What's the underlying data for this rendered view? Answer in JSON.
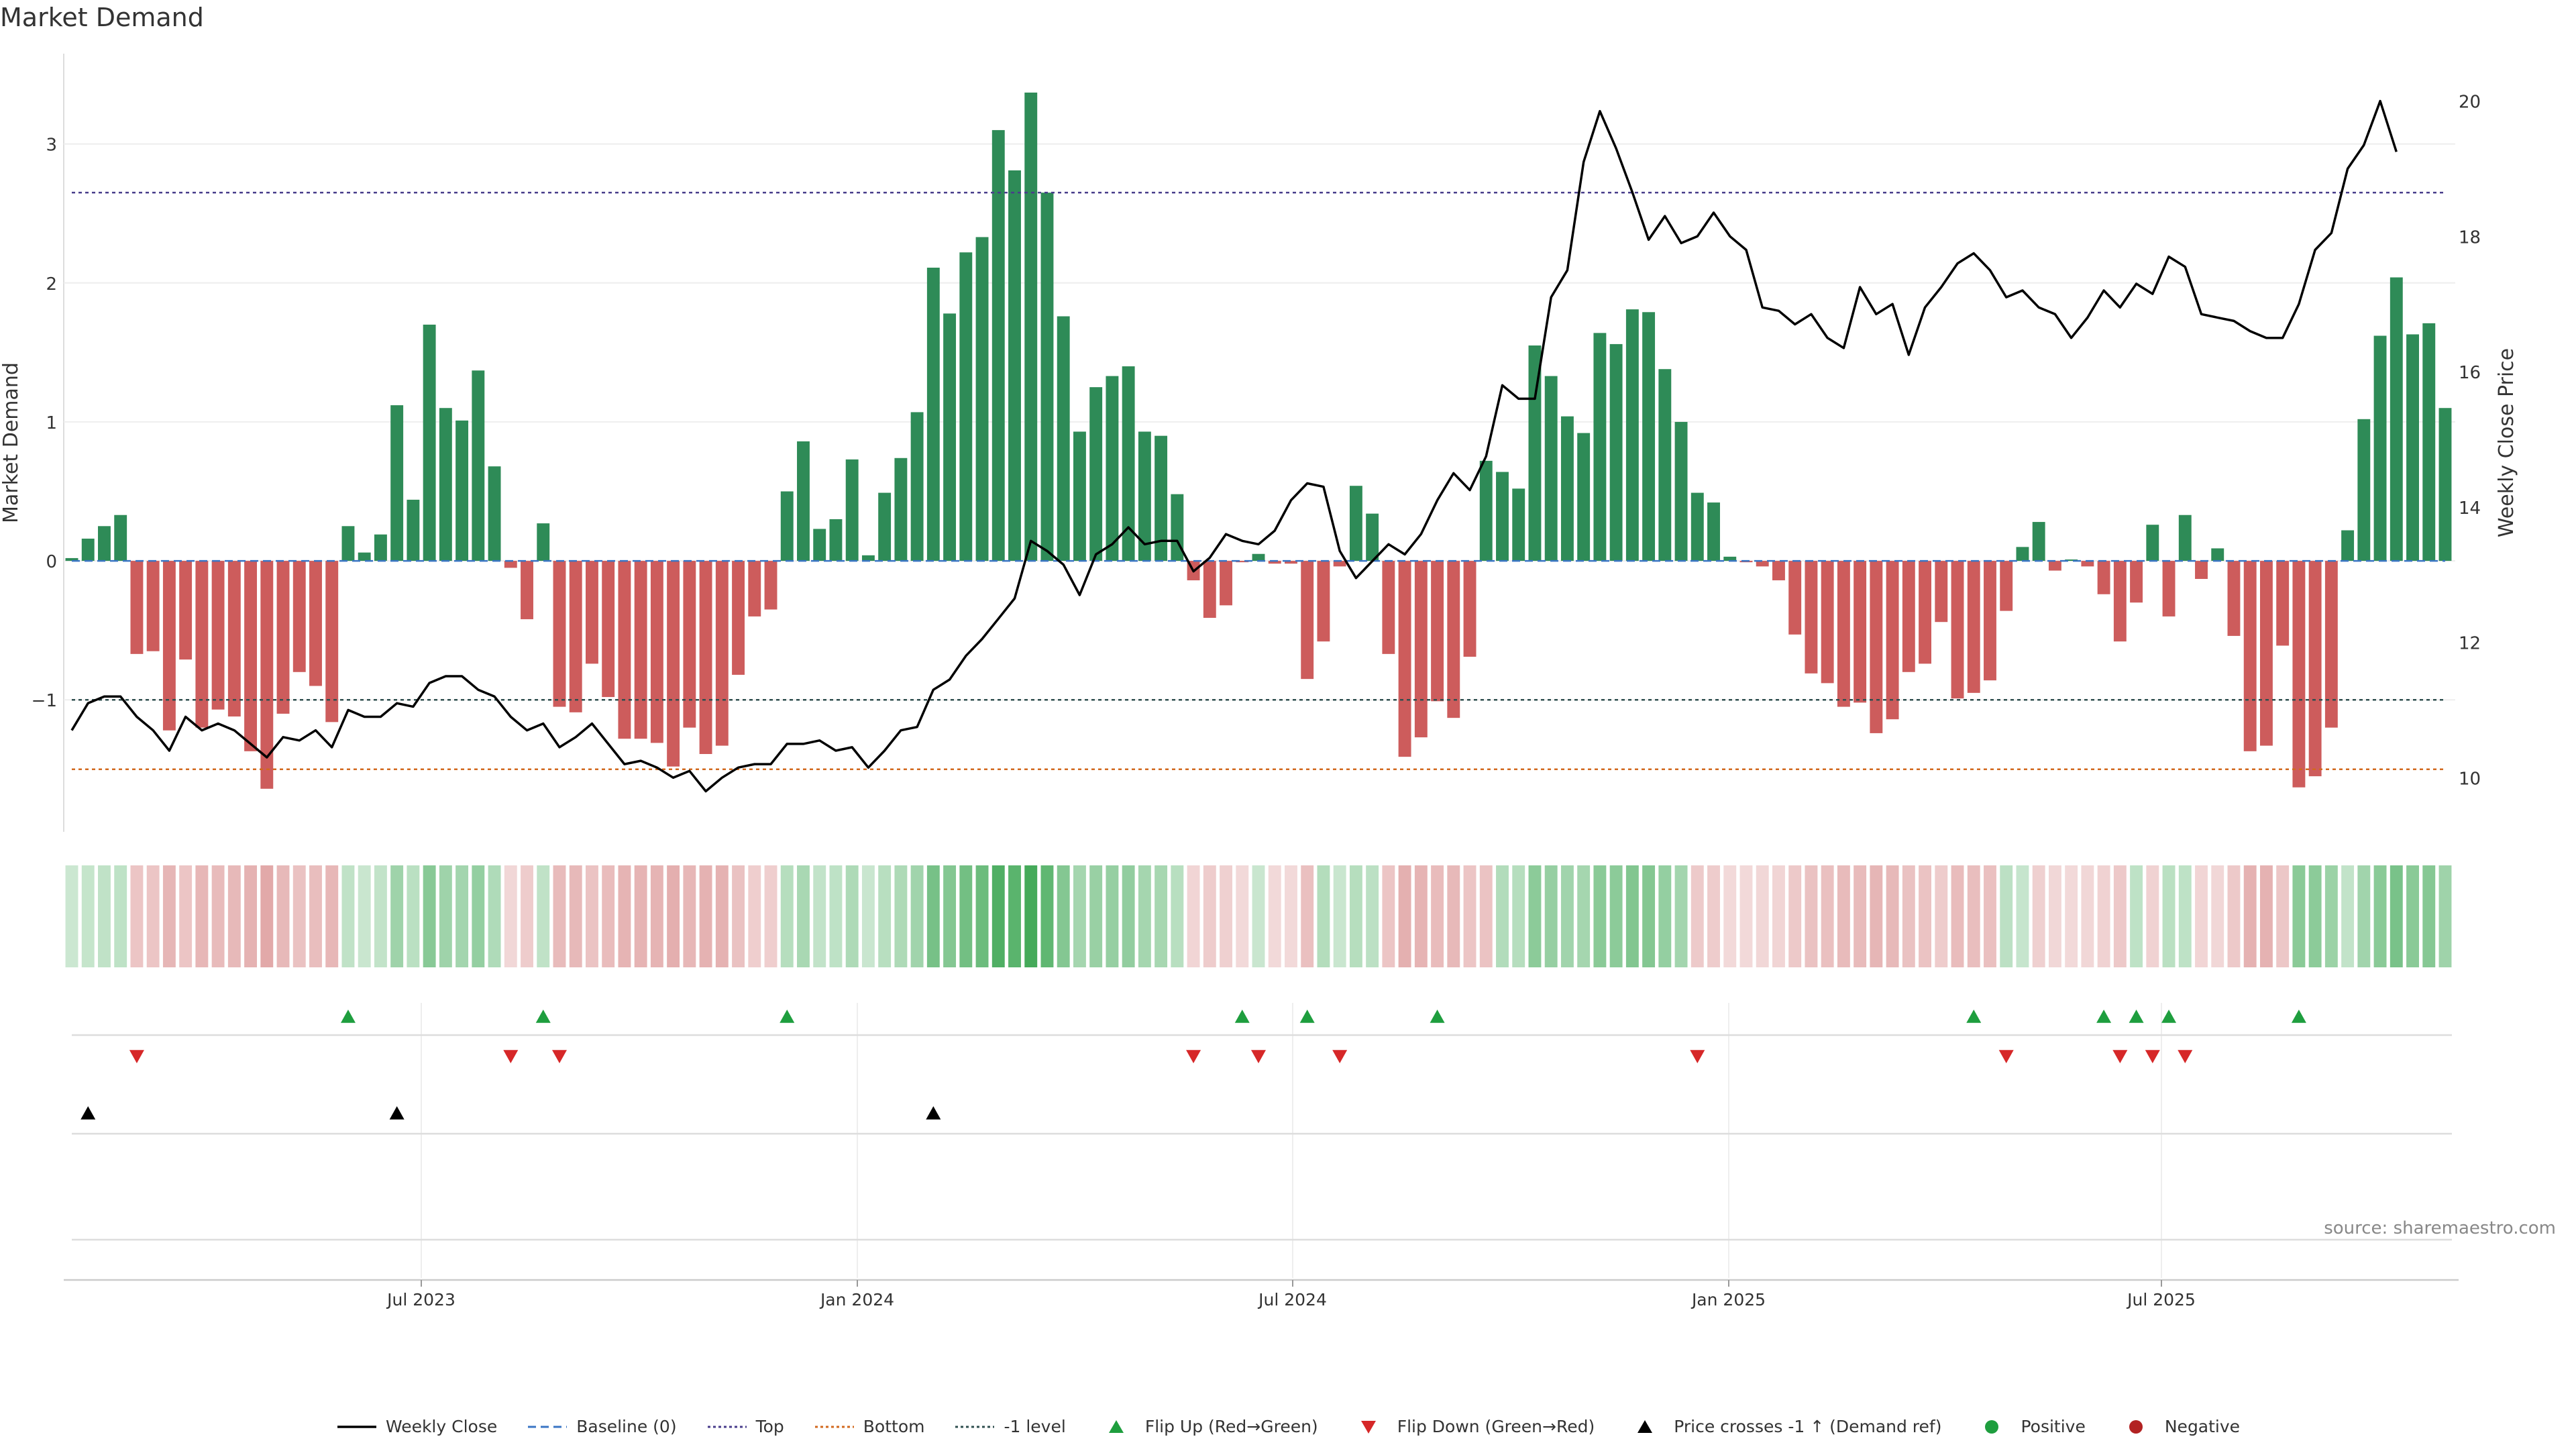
{
  "chart_data": {
    "type": "bar",
    "title": "Market Demand",
    "ylabel": "Market Demand",
    "y2label": "Weekly Close Price",
    "ylim": [
      -1.95,
      3.65
    ],
    "y2lim": [
      9.2,
      20.7
    ],
    "yticks": [
      -1,
      0,
      1,
      2,
      3
    ],
    "y2ticks": [
      10,
      12,
      14,
      16,
      18,
      20
    ],
    "xticks": [
      "Jul 2023",
      "Jan 2024",
      "Jul 2024",
      "Jan 2025",
      "Jul 2025"
    ],
    "reference_lines": {
      "baseline": 0,
      "top": 2.65,
      "bottom": -1.5,
      "minus_one": -1.0
    },
    "demand": [
      0.02,
      0.16,
      0.25,
      0.33,
      -0.67,
      -0.65,
      -1.22,
      -0.71,
      -1.2,
      -1.07,
      -1.12,
      -1.37,
      -1.64,
      -1.1,
      -0.8,
      -0.9,
      -1.16,
      0.25,
      0.06,
      0.19,
      1.12,
      0.44,
      1.7,
      1.1,
      1.01,
      1.37,
      0.68,
      -0.05,
      -0.42,
      0.27,
      -1.05,
      -1.09,
      -0.74,
      -0.98,
      -1.28,
      -1.28,
      -1.31,
      -1.48,
      -1.2,
      -1.39,
      -1.33,
      -0.82,
      -0.4,
      -0.35,
      0.5,
      0.86,
      0.23,
      0.3,
      0.73,
      0.04,
      0.49,
      0.74,
      1.07,
      2.11,
      1.78,
      2.22,
      2.33,
      3.1,
      2.81,
      3.37,
      2.65,
      1.76,
      0.93,
      1.25,
      1.33,
      1.4,
      0.93,
      0.9,
      0.48,
      -0.14,
      -0.41,
      -0.32,
      -0.01,
      0.05,
      -0.02,
      -0.02,
      -0.85,
      -0.58,
      -0.04,
      0.54,
      0.34,
      -0.67,
      -1.41,
      -1.27,
      -1.01,
      -1.13,
      -0.69,
      0.72,
      0.64,
      0.52,
      1.55,
      1.33,
      1.04,
      0.92,
      1.64,
      1.56,
      1.81,
      1.79,
      1.38,
      1.0,
      0.49,
      0.42,
      0.03,
      -0.01,
      -0.04,
      -0.14,
      -0.53,
      -0.81,
      -0.88,
      -1.05,
      -1.02,
      -1.24,
      -1.14,
      -0.8,
      -0.74,
      -0.44,
      -0.99,
      -0.95,
      -0.86,
      -0.36,
      0.1,
      0.28,
      -0.07,
      0.01,
      -0.04,
      -0.24,
      -0.58,
      -0.3,
      0.26,
      -0.4,
      0.33,
      -0.13,
      0.09,
      -0.54,
      -1.37,
      -1.33,
      -0.61,
      -1.63,
      -1.55,
      -1.2,
      0.22,
      1.02,
      1.62,
      2.04,
      1.63,
      1.71,
      1.1
    ],
    "weekly_close": [
      10.7,
      11.1,
      11.2,
      11.2,
      10.9,
      10.7,
      10.4,
      10.9,
      10.7,
      10.8,
      10.7,
      10.5,
      10.3,
      10.6,
      10.55,
      10.7,
      10.45,
      11.0,
      10.9,
      10.9,
      11.1,
      11.05,
      11.4,
      11.5,
      11.5,
      11.3,
      11.2,
      10.9,
      10.7,
      10.8,
      10.45,
      10.6,
      10.8,
      10.5,
      10.2,
      10.25,
      10.15,
      10.0,
      10.1,
      9.8,
      10.0,
      10.15,
      10.2,
      10.2,
      10.5,
      10.5,
      10.55,
      10.4,
      10.45,
      10.15,
      10.4,
      10.7,
      10.75,
      11.3,
      11.45,
      11.8,
      12.05,
      12.35,
      12.65,
      13.5,
      13.35,
      13.15,
      12.7,
      13.3,
      13.45,
      13.7,
      13.45,
      13.5,
      13.5,
      13.05,
      13.25,
      13.6,
      13.5,
      13.45,
      13.65,
      14.1,
      14.35,
      14.3,
      13.35,
      12.95,
      13.2,
      13.45,
      13.3,
      13.6,
      14.1,
      14.5,
      14.25,
      14.75,
      15.8,
      15.6,
      15.6,
      17.1,
      17.5,
      19.1,
      19.85,
      19.3,
      18.65,
      17.95,
      18.3,
      17.9,
      18.0,
      18.35,
      18.0,
      17.8,
      16.95,
      16.9,
      16.7,
      16.85,
      16.5,
      16.35,
      17.25,
      16.85,
      17.0,
      16.25,
      16.95,
      17.25,
      17.6,
      17.75,
      17.5,
      17.1,
      17.2,
      16.95,
      16.85,
      16.5,
      16.8,
      17.2,
      16.95,
      17.3,
      17.15,
      17.7,
      17.55,
      16.85,
      16.8,
      16.75,
      16.6,
      16.5,
      16.5,
      17.0,
      17.8,
      18.05,
      19.0,
      19.35,
      20.0,
      19.25
    ],
    "trend_strip": [
      {
        "start": 0,
        "sign": 1
      },
      {
        "start": 4,
        "sign": -1
      },
      {
        "start": 17,
        "sign": 1
      },
      {
        "start": 27,
        "sign": -1
      },
      {
        "start": 29,
        "sign": 1
      },
      {
        "start": 30,
        "sign": -1
      },
      {
        "start": 44,
        "sign": 1
      },
      {
        "start": 69,
        "sign": -1
      },
      {
        "start": 73,
        "sign": 1
      },
      {
        "start": 74,
        "sign": -1
      },
      {
        "start": 77,
        "sign": 1
      },
      {
        "start": 81,
        "sign": -1
      },
      {
        "start": 88,
        "sign": 1
      },
      {
        "start": 100,
        "sign": -1
      },
      {
        "start": 119,
        "sign": 1
      },
      {
        "start": 121,
        "sign": -1
      },
      {
        "start": 127,
        "sign": 1
      },
      {
        "start": 128,
        "sign": -1
      },
      {
        "start": 129,
        "sign": 1
      },
      {
        "start": 131,
        "sign": -1
      },
      {
        "start": 137,
        "sign": 1
      }
    ],
    "flip_up_weeks": [
      17,
      29,
      44,
      72,
      76,
      84,
      117,
      125,
      127,
      129,
      137
    ],
    "flip_down_weeks": [
      4,
      27,
      30,
      69,
      73,
      78,
      100,
      119,
      126,
      128,
      130
    ],
    "price_cross_weeks": [
      1,
      20,
      53
    ],
    "colors": {
      "positive": "#2e8b57",
      "negative": "#cd5c5c",
      "price": "#000000",
      "top": "#483d8b",
      "bottom": "#d2691e",
      "minus_one": "#2f4f4f",
      "flip_up": "#1e9e3e",
      "flip_down": "#d62728",
      "cross": "#000000"
    },
    "legend": [
      {
        "label": "Weekly Close",
        "symbol": "line-solid",
        "color": "#000000"
      },
      {
        "label": "Baseline (0)",
        "symbol": "line-dashed",
        "color": "#3a75c4"
      },
      {
        "label": "Top",
        "symbol": "line-dotted",
        "color": "#483d8b"
      },
      {
        "label": "Bottom",
        "symbol": "line-dotted",
        "color": "#d2691e"
      },
      {
        "label": "-1 level",
        "symbol": "line-dotted",
        "color": "#2f4f4f"
      },
      {
        "label": "Flip Up (Red→Green)",
        "symbol": "triangle-up",
        "color": "#1e9e3e"
      },
      {
        "label": "Flip Down (Green→Red)",
        "symbol": "triangle-down",
        "color": "#d62728"
      },
      {
        "label": "Price crosses -1 ↑ (Demand ref)",
        "symbol": "triangle-up",
        "color": "#000000"
      },
      {
        "label": "Positive",
        "symbol": "circle",
        "color": "#1e9e3e"
      },
      {
        "label": "Negative",
        "symbol": "circle",
        "color": "#b22222"
      }
    ],
    "source": "source: sharemaestro.com"
  }
}
